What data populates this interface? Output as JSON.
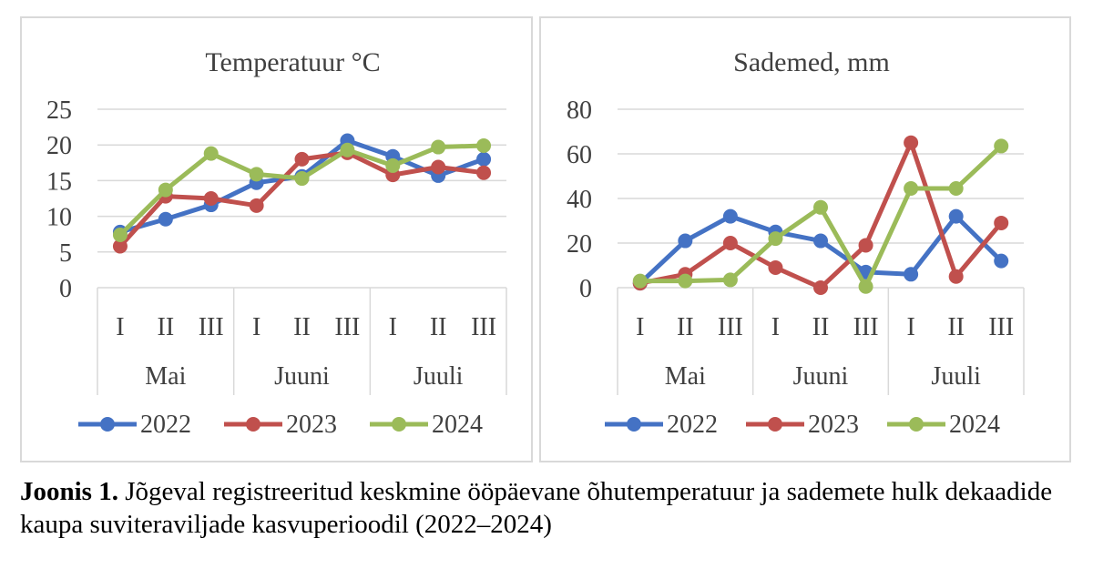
{
  "chart_data": [
    {
      "type": "line",
      "title": "Temperatuur °C",
      "ylim": [
        0,
        25
      ],
      "yticks": [
        0,
        5,
        10,
        15,
        20,
        25
      ],
      "grid": true,
      "legend_position": "bottom",
      "categories": [
        "I",
        "II",
        "III",
        "I",
        "II",
        "III",
        "I",
        "II",
        "III"
      ],
      "groups": [
        {
          "label": "Mai",
          "count": 3
        },
        {
          "label": "Juuni",
          "count": 3
        },
        {
          "label": "Juuli",
          "count": 3
        }
      ],
      "series": [
        {
          "name": "2022",
          "color": "#4472C4",
          "values": [
            7.8,
            9.6,
            11.6,
            14.7,
            15.6,
            20.6,
            18.4,
            15.7,
            18.0
          ]
        },
        {
          "name": "2023",
          "color": "#C0504D",
          "values": [
            5.8,
            12.8,
            12.5,
            11.5,
            18.0,
            18.9,
            15.8,
            16.9,
            16.1
          ]
        },
        {
          "name": "2024",
          "color": "#9BBB59",
          "values": [
            7.4,
            13.7,
            18.8,
            15.9,
            15.3,
            19.3,
            17.1,
            19.7,
            19.9
          ]
        }
      ]
    },
    {
      "type": "line",
      "title": "Sademed, mm",
      "ylim": [
        0,
        80
      ],
      "yticks": [
        0,
        20,
        40,
        60,
        80
      ],
      "grid": true,
      "legend_position": "bottom",
      "categories": [
        "I",
        "II",
        "III",
        "I",
        "II",
        "III",
        "I",
        "II",
        "III"
      ],
      "groups": [
        {
          "label": "Mai",
          "count": 3
        },
        {
          "label": "Juuni",
          "count": 3
        },
        {
          "label": "Juuli",
          "count": 3
        }
      ],
      "series": [
        {
          "name": "2022",
          "color": "#4472C4",
          "values": [
            2,
            21,
            32,
            25,
            21,
            7,
            6,
            32,
            12
          ]
        },
        {
          "name": "2023",
          "color": "#C0504D",
          "values": [
            2,
            6,
            20,
            9,
            0,
            19,
            65,
            5,
            29
          ]
        },
        {
          "name": "2024",
          "color": "#9BBB59",
          "values": [
            3,
            3,
            3.5,
            22,
            36,
            0.5,
            44.5,
            44.5,
            63.5
          ]
        }
      ]
    }
  ],
  "caption": {
    "label": "Joonis 1.",
    "text": " Jõgeval registreeritud keskmine ööpäevane õhutemperatuur ja sademete hulk dekaadide kaupa suviteraviljade kasvuperioodil (2022–2024)"
  }
}
